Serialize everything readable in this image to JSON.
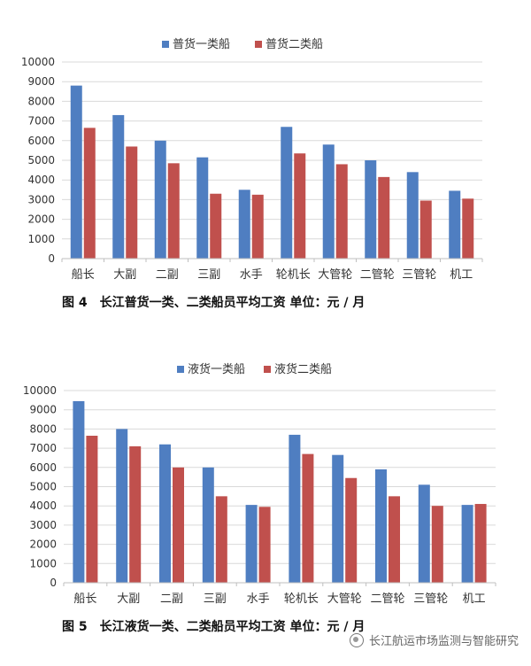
{
  "chart_data": [
    {
      "type": "bar",
      "categories": [
        "船长",
        "大副",
        "二副",
        "三副",
        "水手",
        "轮机长",
        "大管轮",
        "二管轮",
        "三管轮",
        "机工"
      ],
      "series": [
        {
          "name": "普货一类船",
          "values": [
            8800,
            7300,
            6000,
            5150,
            3500,
            6700,
            5800,
            5000,
            4400,
            3450
          ]
        },
        {
          "name": "普货二类船",
          "values": [
            6650,
            5700,
            4850,
            3300,
            3250,
            5350,
            4800,
            4150,
            2950,
            3050
          ]
        }
      ],
      "yticks": [
        "0",
        "1000",
        "2000",
        "3000",
        "4000",
        "5000",
        "6000",
        "7000",
        "8000",
        "9000",
        "10000"
      ],
      "ylim": [
        0,
        10000
      ],
      "legend_position": "top",
      "caption": "图 4　长江普货一类、二类船员平均工资  单位：元 / 月"
    },
    {
      "type": "bar",
      "categories": [
        "船长",
        "大副",
        "二副",
        "三副",
        "水手",
        "轮机长",
        "大管轮",
        "二管轮",
        "三管轮",
        "机工"
      ],
      "series": [
        {
          "name": "液货一类船",
          "values": [
            9450,
            8000,
            7200,
            6000,
            4050,
            7700,
            6650,
            5900,
            5100,
            4050
          ]
        },
        {
          "name": "液货二类船",
          "values": [
            7650,
            7100,
            6000,
            4500,
            3950,
            6700,
            5450,
            4500,
            4000,
            4100
          ]
        }
      ],
      "yticks": [
        "0",
        "1000",
        "2000",
        "3000",
        "4000",
        "5000",
        "6000",
        "7000",
        "8000",
        "9000",
        "10000"
      ],
      "ylim": [
        0,
        10000
      ],
      "legend_position": "top",
      "caption": "图 5　长江液货一类、二类船员平均工资  单位：元 / 月"
    }
  ],
  "colors": {
    "series1": "#4f7ec1",
    "series2": "#c0504d",
    "grid": "#d9d9d9",
    "text": "#333333"
  },
  "watermark": {
    "icon": "wechat-channel-icon",
    "text": "长江航运市场监测与智能研究"
  }
}
